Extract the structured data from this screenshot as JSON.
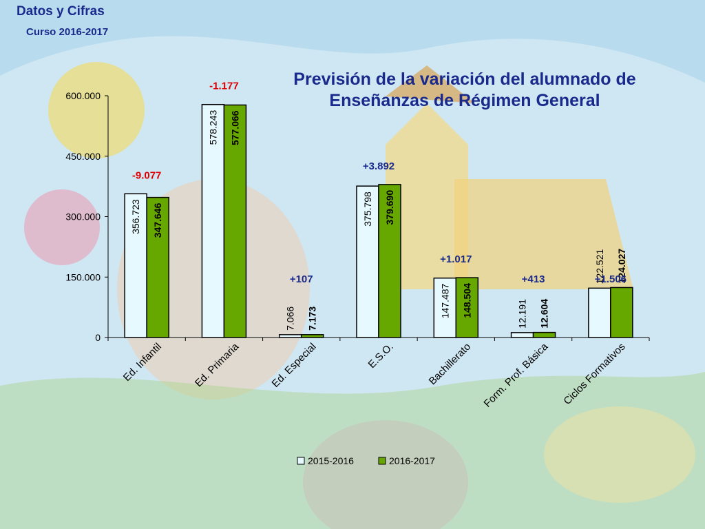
{
  "header": {
    "title": "Datos y Cifras",
    "subtitle": "Curso 2016-2017"
  },
  "colors": {
    "series_2015": "#e6f9ff",
    "series_2016": "#66a800",
    "title": "#1a2a8c",
    "negative_change": "#e00000",
    "positive_change": "#1a2a8c"
  },
  "chart_data": {
    "type": "bar",
    "title": "Previsión de la variación del alumnado de Enseñanzas de Régimen General",
    "xlabel": "",
    "ylabel": "",
    "ylim": [
      0,
      600000
    ],
    "yticks": [
      0,
      150000,
      300000,
      450000,
      600000
    ],
    "ytick_labels": [
      "0",
      "150.000",
      "300.000",
      "450.000",
      "600.000"
    ],
    "grid": false,
    "legend_position": "bottom",
    "categories": [
      "Ed. Infantil",
      "Ed. Primaria",
      "Ed. Especial",
      "E.S.O.",
      "Bachillerato",
      "Form. Prof. Básica",
      "Ciclos Formativos"
    ],
    "series": [
      {
        "name": "2015-2016",
        "values": [
          356723,
          578243,
          7066,
          375798,
          147487,
          12191,
          122521
        ],
        "labels": [
          "356.723",
          "578.243",
          "7.066",
          "375.798",
          "147.487",
          "12.191",
          "122.521"
        ]
      },
      {
        "name": "2016-2017",
        "values": [
          347646,
          577066,
          7173,
          379690,
          148504,
          12604,
          124027
        ],
        "labels": [
          "347.646",
          "577.066",
          "7.173",
          "379.690",
          "148.504",
          "12.604",
          "124.027"
        ]
      }
    ],
    "annotations": [
      "-9.077",
      "-1.177",
      "+107",
      "+3.892",
      "+1.017",
      "+413",
      "+1.506"
    ]
  }
}
